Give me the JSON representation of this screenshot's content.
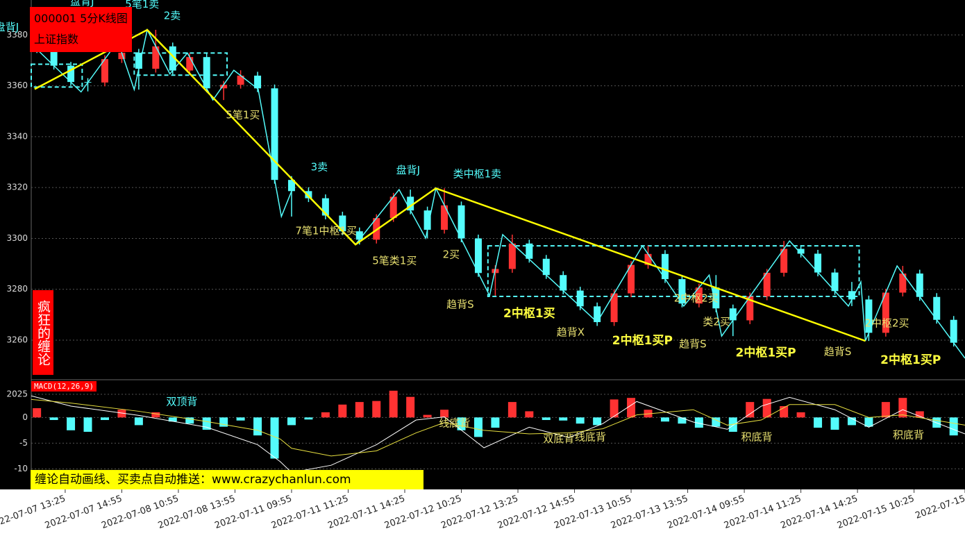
{
  "chart_data": [
    {
      "type": "candlestick",
      "title": "000001 5分K线图",
      "subtitle": "上证指数",
      "side_label": "疯狂的缠论",
      "x": [
        1,
        4,
        7,
        10,
        13,
        16,
        19,
        22,
        25,
        28,
        31,
        34,
        37,
        40,
        43,
        46,
        49,
        52,
        55,
        58,
        61,
        64,
        67,
        70,
        73,
        76,
        79,
        82,
        85,
        88,
        91,
        94,
        97,
        100,
        103,
        106,
        109,
        112,
        115,
        118,
        121,
        124,
        127,
        130,
        133,
        136,
        139,
        142,
        145,
        148,
        151,
        154,
        157,
        160,
        163
      ],
      "open": [
        3377,
        3374.4,
        3367.9,
        3361.5,
        3361.3,
        3370.5,
        3373,
        3366.7,
        3375.5,
        3366,
        3371.3,
        3359,
        3360.4,
        3364,
        3359,
        3323,
        3318.6,
        3315.8,
        3309,
        3302.8,
        3299.5,
        3308,
        3316.4,
        3311,
        3303.4,
        3313,
        3300,
        3286.4,
        3288,
        3298,
        3292,
        3285.6,
        3279.5,
        3273.3,
        3267.1,
        3278.4,
        3289.6,
        3293.9,
        3284,
        3274.4,
        3280.7,
        3272.5,
        3267.8,
        3277.2,
        3286.5,
        3295.9,
        3294,
        3286.6,
        3279.3,
        3276,
        3262.9,
        3278.7,
        3286.2,
        3277,
        3268
      ],
      "high": [
        3378.5,
        3375.9,
        3369.4,
        3363,
        3372,
        3377.5,
        3374.5,
        3382,
        3377,
        3372.9,
        3372.8,
        3361.9,
        3366.1,
        3365.5,
        3360.5,
        3324.5,
        3320.1,
        3317.3,
        3310.5,
        3304.3,
        3309.5,
        3317.9,
        3319.2,
        3312.5,
        3319.7,
        3314.5,
        3301.5,
        3289.5,
        3301.5,
        3299.5,
        3293.5,
        3287.1,
        3281,
        3274.8,
        3279.9,
        3291.1,
        3297.1,
        3295.4,
        3285.5,
        3282.2,
        3285.6,
        3274,
        3278.7,
        3288,
        3299,
        3297.4,
        3295.5,
        3288.1,
        3282.9,
        3277.5,
        3280.2,
        3289.2,
        3287.7,
        3278.5,
        3269.5
      ],
      "low": [
        3372.9,
        3366.4,
        3360,
        3357.8,
        3359.8,
        3369,
        3358.5,
        3365.2,
        3364.5,
        3364.5,
        3357.5,
        3354.4,
        3358.9,
        3357.5,
        3321.5,
        3308.6,
        3314.3,
        3307.5,
        3301.3,
        3297.6,
        3298,
        3306.5,
        3309.5,
        3300.1,
        3301.9,
        3298.5,
        3284.9,
        3277.5,
        3286.5,
        3290.5,
        3284.1,
        3278,
        3271.8,
        3265.6,
        3265.6,
        3276.9,
        3288.1,
        3282.5,
        3272.9,
        3272.9,
        3271,
        3261.6,
        3266.3,
        3275.7,
        3285,
        3292.5,
        3285.1,
        3277.8,
        3273.4,
        3259.7,
        3261.4,
        3277.2,
        3275.5,
        3266.5,
        3257.5
      ],
      "close": [
        3374.4,
        3367.9,
        3361.5,
        3361.3,
        3370.5,
        3373,
        3366.7,
        3375.5,
        3366,
        3371.3,
        3359,
        3360.4,
        3364,
        3359,
        3323,
        3318.6,
        3315.8,
        3309,
        3302.8,
        3299.5,
        3308,
        3316.4,
        3311,
        3303.4,
        3313,
        3300,
        3286.4,
        3288,
        3298,
        3292,
        3285.6,
        3279.5,
        3273.3,
        3267.1,
        3278.4,
        3289.6,
        3293.9,
        3284,
        3274.4,
        3280.7,
        3272.5,
        3267.8,
        3277.2,
        3286.5,
        3295.9,
        3294,
        3286.6,
        3279.3,
        3276,
        3262.9,
        3278.7,
        3286.2,
        3277,
        3268,
        3259
      ],
      "up_color": "#ff3232",
      "down_color": "#54fcfc",
      "xlim": [
        0,
        165
      ],
      "xticks": [
        {
          "value": 6,
          "label": "2022-07-07 13:25"
        },
        {
          "value": 16,
          "label": "2022-07-07 14:55"
        },
        {
          "value": 26,
          "label": "2022-07-08 10:55"
        },
        {
          "value": 36,
          "label": "2022-07-08 13:55"
        },
        {
          "value": 46,
          "label": "2022-07-11 09:55"
        },
        {
          "value": 56,
          "label": "2022-07-11 11:25"
        },
        {
          "value": 66,
          "label": "2022-07-11 14:25"
        },
        {
          "value": 76,
          "label": "2022-07-12 10:25"
        },
        {
          "value": 86,
          "label": "2022-07-12 13:25"
        },
        {
          "value": 96,
          "label": "2022-07-12 14:55"
        },
        {
          "value": 106,
          "label": "2022-07-13 10:55"
        },
        {
          "value": 116,
          "label": "2022-07-13 13:55"
        },
        {
          "value": 126,
          "label": "2022-07-14 09:55"
        },
        {
          "value": 136,
          "label": "2022-07-14 11:25"
        },
        {
          "value": 146,
          "label": "2022-07-14 14:25"
        },
        {
          "value": 156,
          "label": "2022-07-15 10:25"
        },
        {
          "value": 165,
          "label": "2022-07-15"
        }
      ],
      "ylim": [
        3245,
        3391
      ],
      "yticks": [
        3260,
        3280,
        3300,
        3320,
        3340,
        3360,
        3380
      ],
      "grid": true,
      "bi": {
        "color": "#54fcfc",
        "x": [
          0,
          8.8,
          15.3,
          18.2,
          20.5,
          24.5,
          27.6,
          32.1,
          35.8,
          40.1,
          44.2,
          46.6,
          57.3,
          65,
          69.7,
          71.5,
          81,
          83.3,
          100,
          108,
          115.3,
          119.8,
          122,
          134,
          144.4,
          146.6,
          147.4,
          153,
          165
        ],
        "values": [
          3376.5,
          3357.6,
          3377.5,
          3358.5,
          3382,
          3364.7,
          3372.9,
          3354.4,
          3366.1,
          3358.7,
          3308.6,
          3321.9,
          3297.6,
          3319.2,
          3300.1,
          3319.7,
          3277.5,
          3301.5,
          3267.1,
          3297.1,
          3273.4,
          3285.6,
          3261.6,
          3299,
          3273.4,
          3282.9,
          3259.7,
          3289.2,
          3252.9
        ]
      },
      "segments": {
        "color": "#ffff00",
        "x": [
          0.6,
          20.5,
          57.3,
          71.5,
          147.4
        ],
        "values": [
          3358.7,
          3382,
          3297.6,
          3319.7,
          3259.7
        ]
      },
      "zones": [
        {
          "x": [
            0,
            9
          ],
          "y": [
            3359.5,
            3368.5
          ]
        },
        {
          "x": [
            18.2,
            34.6
          ],
          "y": [
            3364.2,
            3372.9
          ]
        },
        {
          "x": [
            80.7,
            146.3
          ],
          "y": [
            3277.2,
            3297.1
          ]
        }
      ],
      "zone_color": "#54fcfc",
      "annotations": [
        {
          "text": "盘背J",
          "x": -4.3,
          "y": 3383,
          "color": "#54fcfc"
        },
        {
          "text": "盘背J",
          "x": 9,
          "y": 3393,
          "color": "#54fcfc"
        },
        {
          "text": "5笔1卖",
          "x": 19.6,
          "y": 3392,
          "color": "#54fcfc"
        },
        {
          "text": "2卖",
          "x": 24.9,
          "y": 3387.4,
          "color": "#54fcfc"
        },
        {
          "text": "5笔1买",
          "x": 37.4,
          "y": 3348.4,
          "color": "#e8e070"
        },
        {
          "text": "3卖",
          "x": 50.9,
          "y": 3327.9,
          "color": "#54fcfc"
        },
        {
          "text": "盘背J",
          "x": 66.6,
          "y": 3326.8,
          "color": "#54fcfc"
        },
        {
          "text": "类中枢1卖",
          "x": 78.8,
          "y": 3325.2,
          "color": "#54fcfc"
        },
        {
          "text": "7笔1中枢1买",
          "x": 52.1,
          "y": 3302.8,
          "color": "#e8e070"
        },
        {
          "text": "5笔类1买",
          "x": 64.2,
          "y": 3291.1,
          "color": "#e8e070"
        },
        {
          "text": "2买",
          "x": 74.2,
          "y": 3293.6,
          "color": "#e8e070"
        },
        {
          "text": "趋背S",
          "x": 75.8,
          "y": 3273.9,
          "color": "#e8e070"
        },
        {
          "text": "2中枢1买",
          "x": 88,
          "y": 3270.4,
          "color": "#ffff40",
          "bold": true
        },
        {
          "text": "趋背X",
          "x": 95.3,
          "y": 3263,
          "color": "#e8e070"
        },
        {
          "text": "2中枢1买P",
          "x": 108,
          "y": 3259.7,
          "color": "#ffff40",
          "bold": true
        },
        {
          "text": "2中枢2买",
          "x": 117.5,
          "y": 3276.4,
          "color": "#e8e070"
        },
        {
          "text": "类2买",
          "x": 121.1,
          "y": 3267.1,
          "color": "#e8e070"
        },
        {
          "text": "趋背S",
          "x": 116.9,
          "y": 3258.4,
          "color": "#e8e070"
        },
        {
          "text": "2中枢1买P",
          "x": 129.8,
          "y": 3254.9,
          "color": "#ffff40",
          "bold": true
        },
        {
          "text": "趋背S",
          "x": 142.5,
          "y": 3255.4,
          "color": "#e8e070"
        },
        {
          "text": "2中枢2买",
          "x": 151.2,
          "y": 3266.6,
          "color": "#e8e070"
        },
        {
          "text": "2中枢1买P",
          "x": 155.4,
          "y": 3252.1,
          "color": "#ffff40",
          "bold": true
        }
      ]
    },
    {
      "type": "macd",
      "title": "MACD(12,26,9)",
      "banner": "缠论自动画线、买卖点自动推送：www.crazychanlun.com",
      "x": [
        1,
        4,
        7,
        10,
        13,
        16,
        19,
        22,
        25,
        28,
        31,
        34,
        37,
        40,
        43,
        46,
        49,
        52,
        55,
        58,
        61,
        64,
        67,
        70,
        73,
        76,
        79,
        82,
        85,
        88,
        91,
        94,
        97,
        100,
        103,
        106,
        109,
        112,
        115,
        118,
        121,
        124,
        127,
        130,
        133,
        136,
        139,
        142,
        145,
        148,
        151,
        154,
        157,
        160,
        163
      ],
      "values": [
        1.8,
        -0.5,
        -2.5,
        -2.8,
        -0.5,
        1.5,
        -1.5,
        1,
        -0.8,
        -1.2,
        -2.4,
        -1.8,
        -0.6,
        -3.5,
        -8,
        -1.5,
        -0.4,
        1,
        2.5,
        3,
        3.2,
        5.2,
        4,
        0.5,
        1.5,
        -2.5,
        -3.8,
        -2,
        3,
        1.2,
        -0.5,
        -0.6,
        -1.2,
        -1.5,
        3.5,
        3.8,
        1.5,
        -0.8,
        -1.2,
        -2,
        -1.8,
        -2.8,
        3,
        3.6,
        2.2,
        1,
        -2,
        -2.4,
        -1.5,
        -1.8,
        3,
        3.8,
        1.2,
        -2,
        -3.5
      ],
      "pos_color": "#ff3232",
      "neg_color": "#54fcfc",
      "series": [
        {
          "color": "#ffffff",
          "x": [
            0,
            7,
            19,
            31,
            40,
            44,
            46,
            53,
            61,
            68,
            73,
            80,
            88,
            95,
            101,
            107,
            117,
            123,
            129,
            134,
            142,
            148,
            154,
            165
          ],
          "values": [
            4.2,
            2.2,
            0.4,
            -1.9,
            -5.3,
            -8.6,
            -10.7,
            -9.3,
            -5.3,
            -0.5,
            0.1,
            -5.9,
            -1.9,
            -3.9,
            -1.2,
            3.1,
            -0.9,
            -2.3,
            2.2,
            3.9,
            1.5,
            -1.9,
            1.5,
            -3.2
          ]
        },
        {
          "color": "#e8e040",
          "x": [
            0,
            7,
            19,
            31,
            40,
            44,
            46,
            53,
            61,
            68,
            73,
            80,
            88,
            95,
            101,
            107,
            117,
            123,
            129,
            134,
            142,
            148,
            154,
            165
          ],
          "values": [
            3.5,
            2.8,
            1.2,
            -0.8,
            -2.5,
            -4.2,
            -6,
            -7.5,
            -6.5,
            -3,
            -1,
            -2.5,
            -3.2,
            -3,
            -2.2,
            0.5,
            1.5,
            -1.5,
            -0.5,
            2.5,
            2.5,
            0,
            0.5,
            -1.5
          ]
        }
      ],
      "xlim": [
        0,
        165
      ],
      "ylim": [
        -14,
        7.2
      ],
      "yticks": [
        {
          "value": 4.5,
          "label": "2025"
        },
        0,
        -5,
        -10
      ],
      "grid": true,
      "annotations": [
        {
          "text": "双顶背",
          "x": 26.6,
          "y": 3,
          "color": "#54fcfc"
        },
        {
          "text": "线底背",
          "x": 74.8,
          "y": -1.2,
          "color": "#e8e070"
        },
        {
          "text": "双底背",
          "x": 93.2,
          "y": -4.2,
          "color": "#e8e070"
        },
        {
          "text": "线底背",
          "x": 98.8,
          "y": -3.9,
          "color": "#e8e070"
        },
        {
          "text": "积底背",
          "x": 128.2,
          "y": -3.9,
          "color": "#e8e070"
        },
        {
          "text": "积底背",
          "x": 155,
          "y": -3.5,
          "color": "#e8e070"
        }
      ]
    }
  ]
}
